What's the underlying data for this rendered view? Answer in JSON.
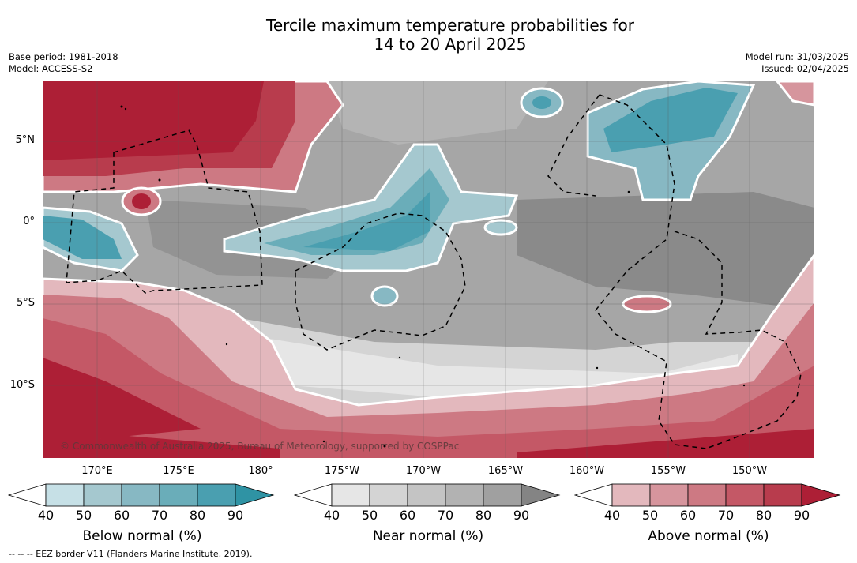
{
  "title_line1": "Tercile maximum temperature probabilities for",
  "title_line2": "14 to 20 April 2025",
  "base_period": "Base period: 1981-2018",
  "model": "Model: ACCESS-S2",
  "model_run": "Model run: 31/03/2025",
  "issued": "Issued: 02/04/2025",
  "copyright": "© Commonwealth of Australia 2025, Bureau of Meteorology, supported by COSPPac",
  "lat_labels": [
    "5°N",
    "0°",
    "5°S",
    "10°S"
  ],
  "lon_labels": [
    "170°E",
    "175°E",
    "180°",
    "175°W",
    "170°W",
    "165°W",
    "160°W",
    "155°W",
    "150°W"
  ],
  "colorbars": [
    {
      "title": "Below normal (%)",
      "ticks": [
        "40",
        "50",
        "60",
        "70",
        "80",
        "90"
      ],
      "colors": [
        "#c6e0e6",
        "#a5c8cf",
        "#87b8c3",
        "#6aadb9",
        "#4a9fb0",
        "#2f93a4"
      ]
    },
    {
      "title": "Near normal (%)",
      "ticks": [
        "40",
        "50",
        "60",
        "70",
        "80",
        "90"
      ],
      "colors": [
        "#e6e6e6",
        "#d4d4d4",
        "#c4c4c4",
        "#b2b2b2",
        "#a0a0a0",
        "#848484"
      ]
    },
    {
      "title": "Above normal (%)",
      "ticks": [
        "40",
        "50",
        "60",
        "70",
        "80",
        "90"
      ],
      "colors": [
        "#e3b8bd",
        "#d6959d",
        "#cd7983",
        "#c45866",
        "#b83c4d",
        "#ad1f36"
      ]
    }
  ],
  "eez_note": "--  --  -- EEZ border V11 (Flanders Marine Institute, 2019).",
  "colors": {
    "below_strong": "#4a9fb0",
    "near_strong": "#848484",
    "above_strong": "#ad1f36"
  }
}
